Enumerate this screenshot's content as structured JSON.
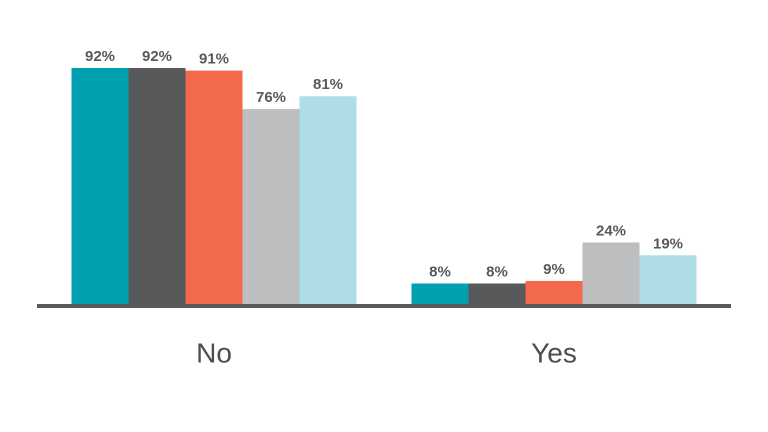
{
  "chart_data": {
    "type": "bar",
    "categories": [
      "No",
      "Yes"
    ],
    "series": [
      {
        "color": "#00a0b0",
        "values": [
          92,
          8
        ],
        "value_labels": [
          "92%",
          "8%"
        ]
      },
      {
        "color": "#58595b",
        "values": [
          92,
          8
        ],
        "value_labels": [
          "92%",
          "8%"
        ]
      },
      {
        "color": "#f26a4b",
        "values": [
          91,
          9
        ],
        "value_labels": [
          "91%",
          "9%"
        ]
      },
      {
        "color": "#bcbec0",
        "values": [
          76,
          24
        ],
        "value_labels": [
          "76%",
          "24%"
        ]
      },
      {
        "color": "#aedde6",
        "values": [
          81,
          19
        ],
        "value_labels": [
          "81%",
          "19%"
        ]
      }
    ],
    "ylim": [
      0,
      100
    ]
  }
}
